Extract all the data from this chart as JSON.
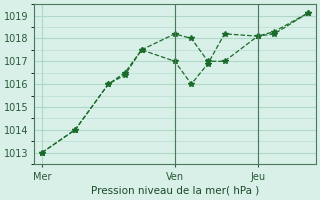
{
  "title": "",
  "xlabel": "Pression niveau de la mer( hPa )",
  "ylabel": "",
  "bg_color": "#d8f0e8",
  "grid_color": "#b0d8c8",
  "line_color": "#1a6b2a",
  "day_labels": [
    "Mer",
    "Ven",
    "Jeu"
  ],
  "day_positions": [
    0,
    8,
    13
  ],
  "ylim": [
    1012.5,
    1019.5
  ],
  "yticks": [
    1013,
    1014,
    1015,
    1016,
    1017,
    1018,
    1019
  ],
  "series1_x": [
    0,
    2,
    4,
    5,
    6,
    8,
    9,
    10,
    11,
    13,
    14,
    16
  ],
  "series1_y": [
    1013.0,
    1014.0,
    1016.0,
    1016.5,
    1017.5,
    1017.0,
    1016.0,
    1016.9,
    1018.2,
    1018.1,
    1018.3,
    1019.1
  ],
  "series2_x": [
    0,
    2,
    4,
    5,
    6,
    8,
    9,
    10,
    11,
    13,
    14,
    16
  ],
  "series2_y": [
    1013.0,
    1014.0,
    1016.0,
    1016.4,
    1017.5,
    1018.2,
    1018.0,
    1017.0,
    1017.0,
    1018.1,
    1018.2,
    1019.1
  ],
  "vline_positions": [
    8,
    13
  ],
  "xlim": [
    -0.5,
    16.5
  ]
}
